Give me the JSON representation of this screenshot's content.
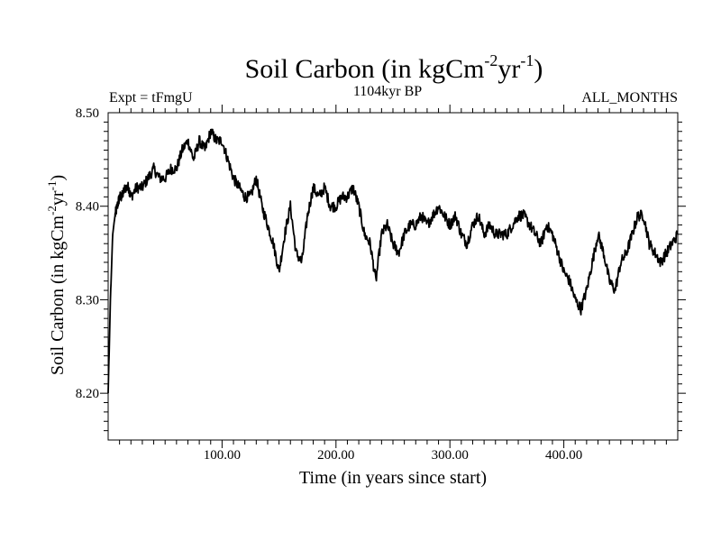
{
  "chart_data": {
    "type": "line",
    "title": "Soil Carbon (in kgCm",
    "title_sup1": "-2",
    "title_mid": "yr",
    "title_sup2": "-1",
    "title_end": ")",
    "subtitle_left": "Expt = tFmgU",
    "subtitle_center": "1104kyr BP",
    "subtitle_right": "ALL_MONTHS",
    "xlabel": "Time (in years since start)",
    "ylabel": "Soil Carbon (in kgCm",
    "ylabel_sup1": "-2",
    "ylabel_mid": "yr",
    "ylabel_sup2": "-1",
    "ylabel_end": ")",
    "xlim": [
      0,
      500
    ],
    "ylim": [
      8.15,
      8.5
    ],
    "x_ticks": [
      100,
      200,
      300,
      400
    ],
    "x_tick_labels": [
      "100.00",
      "200.00",
      "300.00",
      "400.00"
    ],
    "y_ticks": [
      8.2,
      8.3,
      8.4,
      8.5
    ],
    "y_tick_labels": [
      "8.20",
      "8.30",
      "8.40",
      "8.50"
    ],
    "grid": false,
    "series": [
      {
        "name": "Soil Carbon",
        "color": "#000000",
        "x": [
          0,
          2,
          4,
          6,
          8,
          10,
          12,
          15,
          18,
          20,
          25,
          30,
          35,
          40,
          45,
          50,
          55,
          60,
          65,
          70,
          75,
          80,
          85,
          90,
          95,
          100,
          105,
          110,
          115,
          120,
          125,
          130,
          135,
          140,
          145,
          150,
          155,
          160,
          165,
          170,
          175,
          180,
          185,
          190,
          195,
          200,
          205,
          210,
          215,
          220,
          225,
          230,
          235,
          240,
          245,
          250,
          255,
          260,
          265,
          270,
          275,
          280,
          285,
          290,
          295,
          300,
          305,
          310,
          315,
          320,
          325,
          330,
          335,
          340,
          345,
          350,
          355,
          360,
          365,
          370,
          375,
          380,
          385,
          390,
          395,
          400,
          405,
          410,
          415,
          420,
          425,
          430,
          435,
          440,
          445,
          450,
          455,
          460,
          465,
          470,
          475,
          480,
          485,
          490,
          495,
          500
        ],
        "values": [
          8.2,
          8.3,
          8.37,
          8.39,
          8.4,
          8.41,
          8.41,
          8.42,
          8.42,
          8.41,
          8.42,
          8.42,
          8.43,
          8.44,
          8.43,
          8.43,
          8.44,
          8.44,
          8.46,
          8.47,
          8.45,
          8.47,
          8.46,
          8.48,
          8.47,
          8.47,
          8.45,
          8.43,
          8.42,
          8.41,
          8.41,
          8.43,
          8.4,
          8.38,
          8.36,
          8.33,
          8.37,
          8.4,
          8.35,
          8.34,
          8.39,
          8.42,
          8.41,
          8.42,
          8.4,
          8.4,
          8.41,
          8.41,
          8.42,
          8.4,
          8.37,
          8.36,
          8.32,
          8.37,
          8.38,
          8.36,
          8.35,
          8.37,
          8.38,
          8.38,
          8.39,
          8.38,
          8.39,
          8.4,
          8.39,
          8.38,
          8.39,
          8.37,
          8.36,
          8.38,
          8.39,
          8.37,
          8.38,
          8.37,
          8.37,
          8.37,
          8.38,
          8.39,
          8.39,
          8.38,
          8.37,
          8.36,
          8.38,
          8.37,
          8.35,
          8.33,
          8.32,
          8.3,
          8.29,
          8.31,
          8.34,
          8.37,
          8.35,
          8.32,
          8.31,
          8.34,
          8.35,
          8.37,
          8.39,
          8.39,
          8.36,
          8.35,
          8.34,
          8.35,
          8.36,
          8.37
        ]
      }
    ]
  }
}
